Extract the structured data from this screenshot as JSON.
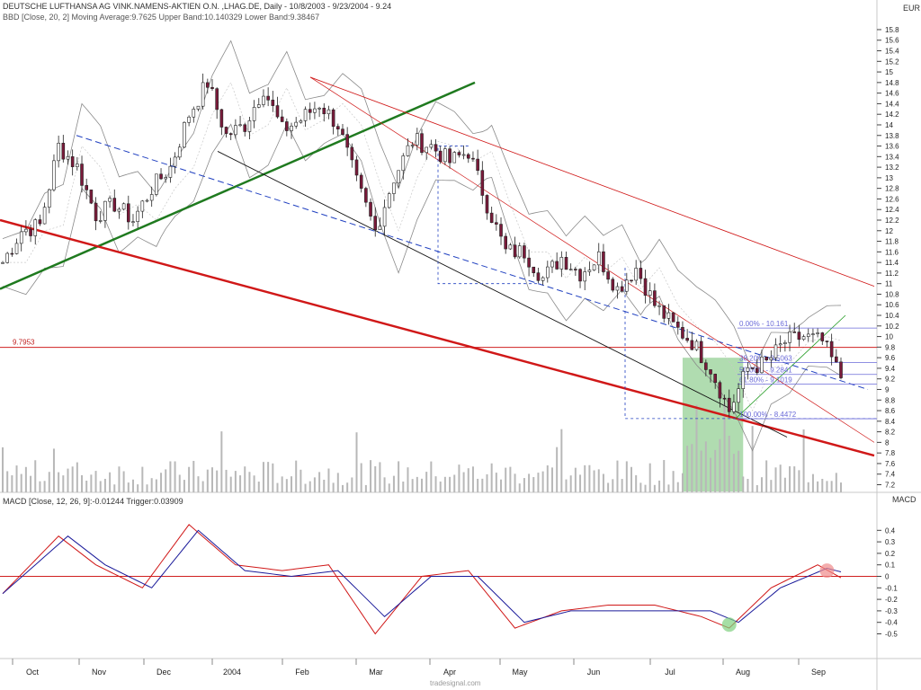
{
  "header": {
    "title_line": "DEUTSCHE LUFTHANSA AG VINK.NAMENS-AKTIEN O.N. ,LHAG.DE, Daily - 10/8/2003 - 9/23/2004 - 9.24",
    "bbd_line": "BBD [Close, 20, 2] Moving Average:9.7625 Upper Band:10.140329 Lower Band:9.38467",
    "currency": "EUR"
  },
  "macd_panel": {
    "label": "MACD [Close, 12, 26, 9]:-0.01244  Trigger:0.03909",
    "axis_title": "MACD",
    "ticks": [
      "0.4",
      "0.3",
      "0.2",
      "0.1",
      "0",
      "-0.1",
      "-0.2",
      "-0.3",
      "-0.4",
      "-0.5"
    ]
  },
  "footer": {
    "brand": "tradesignal.com"
  },
  "chart_data": [
    {
      "type": "candlestick",
      "title": "DEUTSCHE LUFTHANSA AG VINK.NAMENS-AKTIEN O.N. ,LHAG.DE, Daily - 10/8/2003 - 9/23/2004 - 9.24",
      "ylabel": "EUR",
      "ylim": [
        7.2,
        15.8
      ],
      "y_ticks": [
        "15.8",
        "15.6",
        "15.4",
        "15.2",
        "15",
        "14.8",
        "14.6",
        "14.4",
        "14.2",
        "14",
        "13.8",
        "13.6",
        "13.4",
        "13.2",
        "13",
        "12.8",
        "12.6",
        "12.4",
        "12.2",
        "12",
        "11.8",
        "11.6",
        "11.4",
        "11.2",
        "11",
        "10.8",
        "10.6",
        "10.4",
        "10.2",
        "10",
        "9.8",
        "9.6",
        "9.4",
        "9.2",
        "9",
        "8.8",
        "8.6",
        "8.4",
        "8.2",
        "8",
        "7.8",
        "7.6",
        "7.4",
        "7.2"
      ],
      "months": [
        "Oct",
        "Nov",
        "Dec",
        "2004",
        "Feb",
        "Mar",
        "Apr",
        "May",
        "Jun",
        "Jul",
        "Aug",
        "Sep"
      ],
      "price_path": [
        [
          0,
          11.4
        ],
        [
          4,
          12.0
        ],
        [
          8,
          12.1
        ],
        [
          12,
          13.6
        ],
        [
          16,
          13.2
        ],
        [
          20,
          12.3
        ],
        [
          24,
          12.5
        ],
        [
          28,
          12.2
        ],
        [
          32,
          12.8
        ],
        [
          36,
          13.2
        ],
        [
          40,
          14.2
        ],
        [
          44,
          14.8
        ],
        [
          48,
          13.8
        ],
        [
          52,
          14.0
        ],
        [
          56,
          14.7
        ],
        [
          60,
          13.9
        ],
        [
          64,
          14.1
        ],
        [
          68,
          14.4
        ],
        [
          72,
          14.0
        ],
        [
          76,
          12.9
        ],
        [
          80,
          12.0
        ],
        [
          84,
          13.0
        ],
        [
          88,
          13.7
        ],
        [
          92,
          13.6
        ],
        [
          96,
          13.3
        ],
        [
          100,
          13.5
        ],
        [
          104,
          12.5
        ],
        [
          108,
          11.6
        ],
        [
          112,
          11.6
        ],
        [
          116,
          11.1
        ],
        [
          120,
          11.5
        ],
        [
          124,
          11.2
        ],
        [
          128,
          11.5
        ],
        [
          132,
          10.9
        ],
        [
          136,
          11.3
        ],
        [
          140,
          10.6
        ],
        [
          144,
          10.2
        ],
        [
          148,
          9.9
        ],
        [
          152,
          9.4
        ],
        [
          156,
          8.6
        ],
        [
          160,
          9.4
        ],
        [
          164,
          9.5
        ],
        [
          168,
          9.9
        ],
        [
          172,
          10.0
        ],
        [
          176,
          9.9
        ],
        [
          180,
          9.24
        ]
      ],
      "annotations": {
        "horizontal_level": "9.7953",
        "fibonacci": [
          {
            "level": "0.00%",
            "value": "10.161"
          },
          {
            "level": "38.20%",
            "value": "9.5063"
          },
          {
            "level": "50.00%",
            "value": "9.2841"
          },
          {
            "level": "61.80%",
            "value": "9.1019"
          },
          {
            "level": "100.00%",
            "value": "8.4472"
          }
        ]
      },
      "indicators": {
        "bollinger": {
          "period": 20,
          "deviations": 2,
          "moving_average": 9.7625,
          "upper": 10.140329,
          "lower": 9.38467
        }
      },
      "legend": "top-left"
    },
    {
      "type": "line",
      "title": "MACD [Close, 12, 26, 9]:-0.01244  Trigger:0.03909",
      "ylim": [
        -0.55,
        0.5
      ],
      "series": [
        {
          "name": "MACD",
          "values_path": [
            [
              0,
              -0.15
            ],
            [
              12,
              0.35
            ],
            [
              20,
              0.1
            ],
            [
              30,
              -0.1
            ],
            [
              40,
              0.45
            ],
            [
              50,
              0.1
            ],
            [
              60,
              0.05
            ],
            [
              70,
              0.1
            ],
            [
              80,
              -0.5
            ],
            [
              90,
              0.0
            ],
            [
              100,
              0.05
            ],
            [
              110,
              -0.45
            ],
            [
              120,
              -0.3
            ],
            [
              130,
              -0.25
            ],
            [
              140,
              -0.25
            ],
            [
              150,
              -0.35
            ],
            [
              156,
              -0.45
            ],
            [
              165,
              -0.1
            ],
            [
              175,
              0.1
            ],
            [
              180,
              -0.01244
            ]
          ]
        },
        {
          "name": "Trigger",
          "values_path": [
            [
              0,
              -0.15
            ],
            [
              14,
              0.35
            ],
            [
              22,
              0.1
            ],
            [
              32,
              -0.1
            ],
            [
              42,
              0.4
            ],
            [
              52,
              0.05
            ],
            [
              62,
              0.0
            ],
            [
              72,
              0.05
            ],
            [
              82,
              -0.35
            ],
            [
              92,
              0.0
            ],
            [
              102,
              0.0
            ],
            [
              112,
              -0.4
            ],
            [
              122,
              -0.3
            ],
            [
              132,
              -0.3
            ],
            [
              142,
              -0.3
            ],
            [
              152,
              -0.3
            ],
            [
              158,
              -0.4
            ],
            [
              167,
              -0.1
            ],
            [
              177,
              0.07
            ],
            [
              180,
              0.03909
            ]
          ]
        }
      ]
    }
  ]
}
